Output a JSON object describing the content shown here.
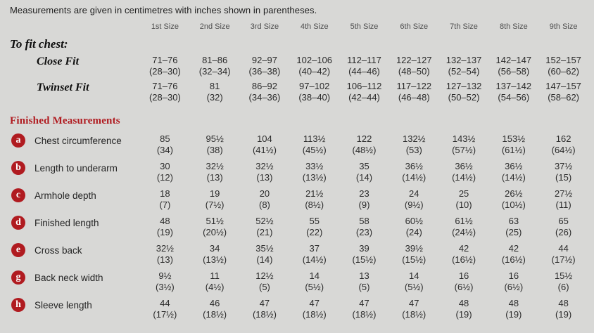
{
  "intro": "Measurements are given in centimetres with inches shown in parentheses.",
  "colors": {
    "accent_red": "#b01b20",
    "background": "#d8d8d6"
  },
  "table": {
    "size_headers": [
      "1st Size",
      "2nd Size",
      "3rd Size",
      "4th Size",
      "5th Size",
      "6th Size",
      "7th Size",
      "8th Size",
      "9th Size"
    ],
    "to_fit_chest": {
      "label": "To fit chest:",
      "rows": [
        {
          "label": "Close Fit",
          "cm": [
            "71–76",
            "81–86",
            "92–97",
            "102–106",
            "112–117",
            "122–127",
            "132–137",
            "142–147",
            "152–157"
          ],
          "in": [
            "(28–30)",
            "(32–34)",
            "(36–38)",
            "(40–42)",
            "(44–46)",
            "(48–50)",
            "(52–54)",
            "(56–58)",
            "(60–62)"
          ]
        },
        {
          "label": "Twinset Fit",
          "cm": [
            "71–76",
            "81",
            "86–92",
            "97–102",
            "106–112",
            "117–122",
            "127–132",
            "137–142",
            "147–157"
          ],
          "in": [
            "(28–30)",
            "(32)",
            "(34–36)",
            "(38–40)",
            "(42–44)",
            "(46–48)",
            "(50–52)",
            "(54–56)",
            "(58–62)"
          ]
        }
      ]
    },
    "finished_measurements": {
      "label": "Finished Measurements",
      "rows": [
        {
          "key": "a",
          "label": "Chest circumference",
          "cm": [
            "85",
            "95½",
            "104",
            "113½",
            "122",
            "132½",
            "143½",
            "153½",
            "162"
          ],
          "in": [
            "(34)",
            "(38)",
            "(41½)",
            "(45½)",
            "(48½)",
            "(53)",
            "(57½)",
            "(61½)",
            "(64½)"
          ]
        },
        {
          "key": "b",
          "label": "Length to underarm",
          "cm": [
            "30",
            "32½",
            "32½",
            "33½",
            "35",
            "36½",
            "36½",
            "36½",
            "37½"
          ],
          "in": [
            "(12)",
            "(13)",
            "(13)",
            "(13½)",
            "(14)",
            "(14½)",
            "(14½)",
            "(14½)",
            "(15)"
          ]
        },
        {
          "key": "c",
          "label": "Armhole depth",
          "cm": [
            "18",
            "19",
            "20",
            "21½",
            "23",
            "24",
            "25",
            "26½",
            "27½"
          ],
          "in": [
            "(7)",
            "(7½)",
            "(8)",
            "(8½)",
            "(9)",
            "(9½)",
            "(10)",
            "(10½)",
            "(11)"
          ]
        },
        {
          "key": "d",
          "label": "Finished length",
          "cm": [
            "48",
            "51½",
            "52½",
            "55",
            "58",
            "60½",
            "61½",
            "63",
            "65"
          ],
          "in": [
            "(19)",
            "(20½)",
            "(21)",
            "(22)",
            "(23)",
            "(24)",
            "(24½)",
            "(25)",
            "(26)"
          ]
        },
        {
          "key": "e",
          "label": "Cross back",
          "cm": [
            "32½",
            "34",
            "35½",
            "37",
            "39",
            "39½",
            "42",
            "42",
            "44"
          ],
          "in": [
            "(13)",
            "(13½)",
            "(14)",
            "(14½)",
            "(15½)",
            "(15½)",
            "(16½)",
            "(16½)",
            "(17½)"
          ]
        },
        {
          "key": "g",
          "label": "Back neck width",
          "cm": [
            "9½",
            "11",
            "12½",
            "14",
            "13",
            "14",
            "16",
            "16",
            "15½"
          ],
          "in": [
            "(3½)",
            "(4½)",
            "(5)",
            "(5½)",
            "(5)",
            "(5½)",
            "(6½)",
            "(6½)",
            "(6)"
          ]
        },
        {
          "key": "h",
          "label": "Sleeve length",
          "cm": [
            "44",
            "46",
            "47",
            "47",
            "47",
            "47",
            "48",
            "48",
            "48"
          ],
          "in": [
            "(17½)",
            "(18½)",
            "(18½)",
            "(18½)",
            "(18½)",
            "(18½)",
            "(19)",
            "(19)",
            "(19)"
          ]
        }
      ]
    }
  }
}
